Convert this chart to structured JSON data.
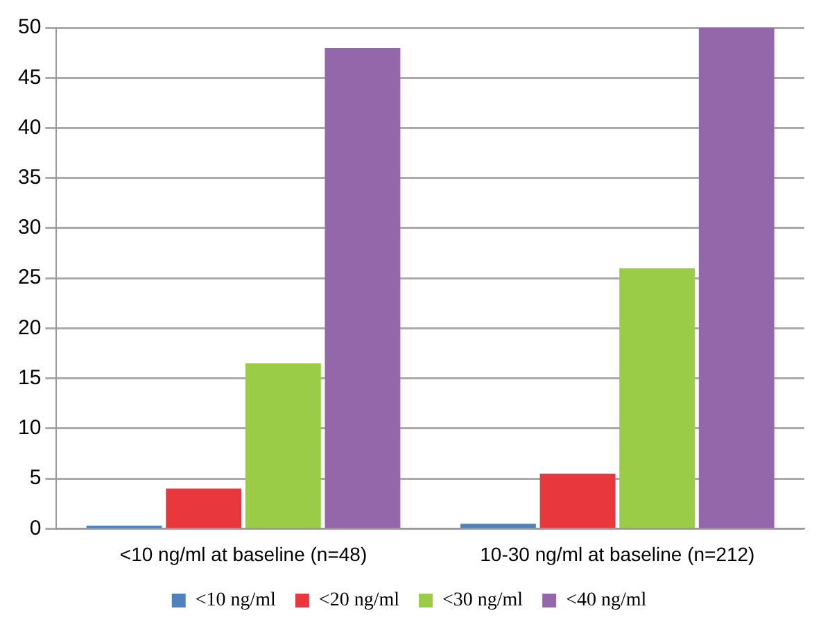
{
  "chart_data": {
    "type": "bar",
    "categories": [
      "<10 ng/ml at baseline (n=48)",
      "10-30 ng/ml at baseline (n=212)"
    ],
    "series": [
      {
        "name": "<10 ng/ml",
        "color": "#4f81bd",
        "values": [
          0.3,
          0.5
        ]
      },
      {
        "name": "<20 ng/ml",
        "color": "#e8383d",
        "values": [
          4,
          5.5
        ]
      },
      {
        "name": "<30 ng/ml",
        "color": "#9bcc47",
        "values": [
          16.5,
          26
        ]
      },
      {
        "name": "<40 ng/ml",
        "color": "#9467ab",
        "values": [
          48,
          50
        ]
      }
    ],
    "ylim": [
      0,
      50
    ],
    "yticks": [
      0,
      5,
      10,
      15,
      20,
      25,
      30,
      35,
      40,
      45,
      50
    ],
    "grid": "y",
    "legend": "bottom"
  }
}
